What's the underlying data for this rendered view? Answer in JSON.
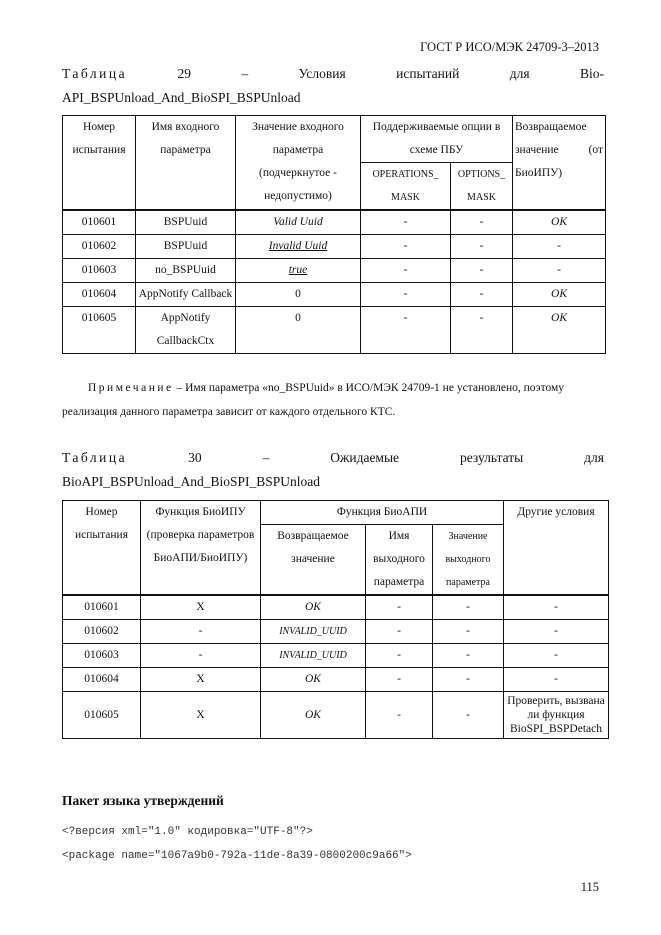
{
  "header": "ГОСТ Р ИСО/МЭК 24709-3–2013",
  "table29": {
    "caption_words": [
      "Таблица",
      "29",
      "–",
      "Условия",
      "испытаний",
      "для",
      "Bio-"
    ],
    "caption_line2": "API_BSPUnload_And_BioSPI_BSPUnload",
    "headers": {
      "num": "Номер испытания",
      "name": "Имя входного параметра",
      "value": "Значение входного параметра (подчеркнутое - недопустимо)",
      "options": "Поддерживаемые опции в схеме ПБУ",
      "ops": "OPERATIONS_ MASK",
      "opts": "OPTIONS_ MASK",
      "ret": "Возвращаемое значение (от БиоИПУ)"
    },
    "rows": [
      [
        "010601",
        "BSPUuid",
        "Valid Uuid",
        "-",
        "-",
        "OK"
      ],
      [
        "010602",
        "BSPUuid",
        "Invalid Uuid",
        "-",
        "-",
        "-"
      ],
      [
        "010603",
        "no_BSPUuid",
        "true",
        "-",
        "-",
        "-"
      ],
      [
        "010604",
        "AppNotify Callback",
        "0",
        "-",
        "-",
        "OK"
      ],
      [
        "010605",
        "AppNotify CallbackCtx",
        "0",
        "-",
        "-",
        "OK"
      ]
    ]
  },
  "note": {
    "label": "Примечание",
    "text": " – Имя параметра «no_BSPUuid» в ИСО/МЭК 24709-1 не установлено, поэтому реализация данного параметра зависит от каждого отдельного КТС."
  },
  "table30": {
    "caption_words": [
      "Таблица",
      "30",
      "–",
      "Ожидаемые",
      "результаты",
      "для"
    ],
    "caption_line2": "BioAPI_BSPUnload_And_BioSPI_BSPUnload",
    "headers": {
      "num": "Номер испытания",
      "bsp": "Функция БиоИПУ (проверка параметров БиоАПИ/БиоИПУ)",
      "api": "Функция БиоАПИ",
      "ret": "Возвращаемое значение",
      "outname": "Имя выходного параметра",
      "outval": "Значение выходного параметра",
      "other": "Другие условия"
    },
    "rows": [
      [
        "010601",
        "X",
        "OK",
        "-",
        "-",
        "-"
      ],
      [
        "010602",
        "-",
        "INVALID_UUID",
        "-",
        "-",
        "-"
      ],
      [
        "010603",
        "-",
        "INVALID_UUID",
        "-",
        "-",
        "-"
      ],
      [
        "010604",
        "X",
        "OK",
        "-",
        "-",
        "-"
      ],
      [
        "010605",
        "X",
        "OK",
        "-",
        "-",
        "Проверить, вызвана ли функция BioSPI_BSPDetach"
      ]
    ]
  },
  "section_title": "Пакет языка утверждений",
  "code": [
    "<?версия xml=\"1.0\" кодировка=\"UTF-8\"?>",
    "<package name=\"1067a9b0-792a-11de-8a39-0800200c9a66\">"
  ],
  "page_number": "115"
}
